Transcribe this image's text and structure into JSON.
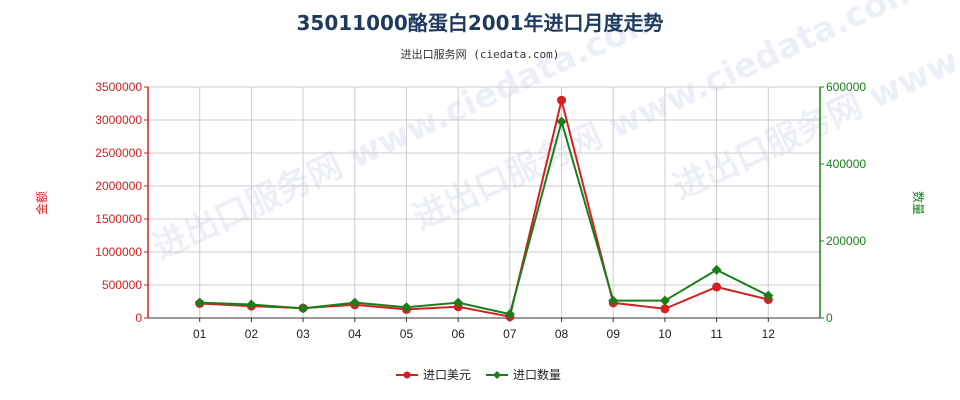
{
  "title": "35011000酪蛋白2001年进口月度走势",
  "subtitle": "进出口服务网 (ciedata.com)",
  "watermark": "进出口服务网 www.ciedata.com",
  "colors": {
    "left_axis": "#d42020",
    "right_axis": "#1a7f1a",
    "grid": "#cccccc"
  },
  "chart_data": {
    "type": "line",
    "categories": [
      "01",
      "02",
      "03",
      "04",
      "05",
      "06",
      "07",
      "08",
      "09",
      "10",
      "11",
      "12"
    ],
    "ylabel_left": "金额",
    "ylabel_right": "数量",
    "ylim_left": [
      0,
      3500000
    ],
    "ylim_right": [
      0,
      600000
    ],
    "yticks_left": [
      "0",
      "500000",
      "1000000",
      "1500000",
      "2000000",
      "2500000",
      "3000000",
      "3500000"
    ],
    "yticks_right": [
      "0",
      "200000",
      "400000",
      "600000"
    ],
    "grid": true,
    "legend_position": "bottom-center",
    "series": [
      {
        "name": "进口美元",
        "axis": "left",
        "color": "#d42020",
        "marker": "circle",
        "values": [
          220000,
          180000,
          150000,
          200000,
          130000,
          170000,
          20000,
          3300000,
          230000,
          140000,
          470000,
          280000
        ]
      },
      {
        "name": "进口数量",
        "axis": "right",
        "color": "#1a7f1a",
        "marker": "diamond",
        "values": [
          40000,
          35000,
          25000,
          40000,
          28000,
          40000,
          10000,
          510000,
          45000,
          45000,
          125000,
          58000
        ]
      }
    ]
  }
}
